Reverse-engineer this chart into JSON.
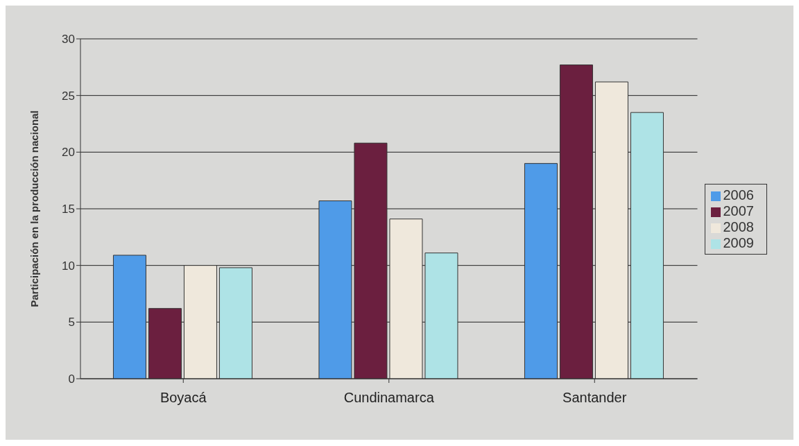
{
  "chart_data": {
    "type": "bar",
    "ylabel": "Participación en la producción nacional",
    "categories": [
      "Boyacá",
      "Cundinamarca",
      "Santander"
    ],
    "series": [
      {
        "name": "2006",
        "color": "#4f9be8",
        "values": [
          10.9,
          15.7,
          19.0
        ]
      },
      {
        "name": "2007",
        "color": "#6b1f3f",
        "values": [
          6.2,
          20.8,
          27.7
        ]
      },
      {
        "name": "2008",
        "color": "#efe8dc",
        "values": [
          10.0,
          14.1,
          26.2
        ]
      },
      {
        "name": "2009",
        "color": "#aee3e6",
        "values": [
          9.8,
          11.1,
          23.5
        ]
      }
    ],
    "ylim": [
      0,
      30
    ],
    "yticks": [
      0,
      5,
      10,
      15,
      20,
      25,
      30
    ],
    "grid": "y",
    "legend": "right"
  }
}
